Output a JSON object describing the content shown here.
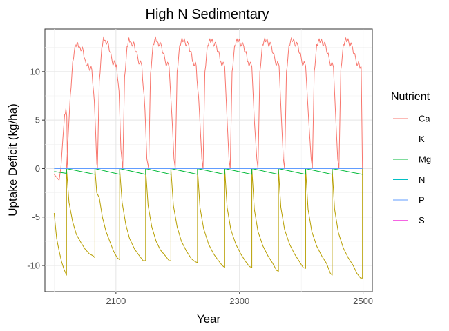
{
  "chart_data": {
    "type": "line",
    "title": "High N Sedimentary",
    "xlabel": "Year",
    "ylabel": "Uptake Deficit (kg/ha)",
    "xlim": [
      1985,
      2515
    ],
    "ylim": [
      -12.7,
      14.4
    ],
    "x_ticks": [
      2100,
      2300,
      2500
    ],
    "y_ticks": [
      -10,
      -5,
      0,
      5,
      10
    ],
    "grid": true,
    "legend": {
      "title": "Nutrient",
      "position": "right"
    },
    "cycle_starts": [
      2020,
      2070,
      2111,
      2153,
      2196,
      2241,
      2285,
      2330,
      2373,
      2418,
      2461
    ],
    "series": [
      {
        "name": "Ca",
        "color": "#F8766D",
        "points": [
          [
            2000,
            -0.6
          ],
          [
            2008,
            -1.2
          ],
          [
            2011,
            0.2
          ],
          [
            2014,
            3.0
          ],
          [
            2017,
            5.6
          ],
          [
            2019,
            6.2
          ],
          [
            2020.5,
            5.4
          ],
          [
            2021.5,
            0.5
          ],
          [
            2022,
            0.0
          ],
          [
            2020,
            0.0
          ],
          [
            2026,
            7.5
          ],
          [
            2030,
            11.0
          ],
          [
            2034,
            12.8
          ],
          [
            2038,
            13.0
          ],
          [
            2042,
            12.5
          ],
          [
            2047,
            12.2
          ],
          [
            2051,
            11.0
          ],
          [
            2056,
            10.5
          ],
          [
            2061,
            10.2
          ],
          [
            2065,
            7.0
          ],
          [
            2067,
            4.0
          ],
          [
            2069,
            0.5
          ],
          [
            2070,
            0.0
          ],
          [
            2070,
            0.0
          ],
          [
            2073,
            9.0
          ],
          [
            2077,
            12.5
          ],
          [
            2080,
            13.6
          ],
          [
            2083,
            13.2
          ],
          [
            2088,
            12.8
          ],
          [
            2094,
            11.0
          ],
          [
            2101,
            10.7
          ],
          [
            2105,
            8.0
          ],
          [
            2108,
            2.0
          ],
          [
            2111,
            0.0
          ],
          [
            2111,
            0.0
          ],
          [
            2114,
            9.5
          ],
          [
            2118,
            12.6
          ],
          [
            2121,
            13.5
          ],
          [
            2125,
            13.0
          ],
          [
            2130,
            12.7
          ],
          [
            2136,
            11.2
          ],
          [
            2142,
            10.6
          ],
          [
            2147,
            6.0
          ],
          [
            2150,
            1.0
          ],
          [
            2153,
            0.0
          ],
          [
            2153,
            0.0
          ],
          [
            2156,
            9.8
          ],
          [
            2160,
            12.8
          ],
          [
            2164,
            13.6
          ],
          [
            2168,
            13.0
          ],
          [
            2174,
            12.6
          ],
          [
            2180,
            11.0
          ],
          [
            2186,
            10.5
          ],
          [
            2191,
            5.0
          ],
          [
            2194,
            1.0
          ],
          [
            2196,
            0.0
          ],
          [
            2196,
            0.0
          ],
          [
            2199,
            10.0
          ],
          [
            2203,
            12.7
          ],
          [
            2207,
            13.5
          ],
          [
            2212,
            13.0
          ],
          [
            2218,
            12.7
          ],
          [
            2225,
            11.0
          ],
          [
            2230,
            10.6
          ],
          [
            2235,
            6.0
          ],
          [
            2239,
            1.0
          ],
          [
            2241,
            0.0
          ],
          [
            2241,
            0.0
          ],
          [
            2244,
            10.0
          ],
          [
            2248,
            12.7
          ],
          [
            2252,
            13.4
          ],
          [
            2257,
            13.0
          ],
          [
            2263,
            12.6
          ],
          [
            2270,
            11.0
          ],
          [
            2276,
            10.5
          ],
          [
            2280,
            5.0
          ],
          [
            2283,
            1.0
          ],
          [
            2285,
            0.0
          ],
          [
            2285,
            0.0
          ],
          [
            2288,
            10.0
          ],
          [
            2292,
            12.7
          ],
          [
            2296,
            13.4
          ],
          [
            2301,
            13.0
          ],
          [
            2307,
            12.6
          ],
          [
            2314,
            11.0
          ],
          [
            2320,
            10.5
          ],
          [
            2324,
            5.0
          ],
          [
            2328,
            1.0
          ],
          [
            2330,
            0.0
          ],
          [
            2330,
            0.0
          ],
          [
            2333,
            10.0
          ],
          [
            2337,
            12.8
          ],
          [
            2341,
            13.5
          ],
          [
            2346,
            13.0
          ],
          [
            2352,
            12.6
          ],
          [
            2358,
            11.0
          ],
          [
            2364,
            10.6
          ],
          [
            2368,
            5.0
          ],
          [
            2371,
            1.0
          ],
          [
            2373,
            0.0
          ],
          [
            2373,
            0.0
          ],
          [
            2376,
            10.0
          ],
          [
            2380,
            12.7
          ],
          [
            2384,
            13.5
          ],
          [
            2389,
            13.0
          ],
          [
            2395,
            12.6
          ],
          [
            2401,
            11.0
          ],
          [
            2407,
            10.6
          ],
          [
            2412,
            5.0
          ],
          [
            2416,
            1.0
          ],
          [
            2418,
            0.0
          ],
          [
            2418,
            0.0
          ],
          [
            2421,
            10.0
          ],
          [
            2425,
            12.8
          ],
          [
            2429,
            13.4
          ],
          [
            2434,
            13.0
          ],
          [
            2440,
            12.6
          ],
          [
            2446,
            11.0
          ],
          [
            2452,
            10.5
          ],
          [
            2456,
            5.0
          ],
          [
            2459,
            1.0
          ],
          [
            2461,
            0.0
          ],
          [
            2461,
            0.0
          ],
          [
            2464,
            10.2
          ],
          [
            2468,
            12.8
          ],
          [
            2472,
            13.5
          ],
          [
            2477,
            13.0
          ],
          [
            2483,
            12.5
          ],
          [
            2489,
            11.0
          ],
          [
            2494,
            10.7
          ],
          [
            2497,
            10.5
          ],
          [
            2499,
            0.0
          ]
        ]
      },
      {
        "name": "K",
        "color": "#B79F00",
        "points": [
          [
            2000,
            -4.6
          ],
          [
            2004,
            -7.2
          ],
          [
            2008,
            -8.5
          ],
          [
            2012,
            -9.6
          ],
          [
            2016,
            -10.4
          ],
          [
            2020,
            -11.0
          ],
          [
            2020,
            0.0
          ],
          [
            2024,
            -3.5
          ],
          [
            2030,
            -5.5
          ],
          [
            2036,
            -6.8
          ],
          [
            2043,
            -7.6
          ],
          [
            2050,
            -8.3
          ],
          [
            2057,
            -8.8
          ],
          [
            2063,
            -9.0
          ],
          [
            2066,
            -9.2
          ],
          [
            2066,
            0.0
          ],
          [
            2069,
            -2.5
          ],
          [
            2073,
            -3.0
          ],
          [
            2078,
            -5.0
          ],
          [
            2084,
            -6.5
          ],
          [
            2090,
            -7.5
          ],
          [
            2096,
            -8.5
          ],
          [
            2102,
            -9.2
          ],
          [
            2106,
            -9.4
          ],
          [
            2106,
            0.0
          ],
          [
            2110,
            -3.5
          ],
          [
            2116,
            -5.8
          ],
          [
            2122,
            -7.2
          ],
          [
            2130,
            -8.3
          ],
          [
            2138,
            -9.0
          ],
          [
            2144,
            -9.5
          ],
          [
            2148,
            -9.5
          ],
          [
            2148,
            0.0
          ],
          [
            2152,
            -3.8
          ],
          [
            2158,
            -6.0
          ],
          [
            2165,
            -7.5
          ],
          [
            2172,
            -8.4
          ],
          [
            2180,
            -9.0
          ],
          [
            2186,
            -9.5
          ],
          [
            2189,
            -9.5
          ],
          [
            2189,
            0.0
          ],
          [
            2193,
            -3.8
          ],
          [
            2199,
            -6.0
          ],
          [
            2206,
            -7.5
          ],
          [
            2214,
            -8.5
          ],
          [
            2222,
            -9.3
          ],
          [
            2228,
            -9.6
          ],
          [
            2232,
            -9.7
          ],
          [
            2232,
            0.0
          ],
          [
            2236,
            -4.0
          ],
          [
            2242,
            -6.2
          ],
          [
            2250,
            -7.8
          ],
          [
            2258,
            -8.8
          ],
          [
            2266,
            -9.5
          ],
          [
            2272,
            -10.0
          ],
          [
            2276,
            -10.2
          ],
          [
            2276,
            0.0
          ],
          [
            2280,
            -4.0
          ],
          [
            2286,
            -6.3
          ],
          [
            2294,
            -7.8
          ],
          [
            2302,
            -8.8
          ],
          [
            2310,
            -9.6
          ],
          [
            2316,
            -10.1
          ],
          [
            2320,
            -10.2
          ],
          [
            2320,
            0.0
          ],
          [
            2324,
            -4.2
          ],
          [
            2330,
            -6.5
          ],
          [
            2338,
            -8.0
          ],
          [
            2346,
            -9.0
          ],
          [
            2354,
            -9.8
          ],
          [
            2360,
            -10.5
          ],
          [
            2363,
            -10.6
          ],
          [
            2363,
            0.0
          ],
          [
            2367,
            -4.0
          ],
          [
            2373,
            -6.3
          ],
          [
            2381,
            -7.8
          ],
          [
            2389,
            -8.8
          ],
          [
            2397,
            -9.6
          ],
          [
            2403,
            -10.2
          ],
          [
            2407,
            -10.3
          ],
          [
            2407,
            0.0
          ],
          [
            2411,
            -4.2
          ],
          [
            2417,
            -6.5
          ],
          [
            2425,
            -8.0
          ],
          [
            2433,
            -9.0
          ],
          [
            2441,
            -9.8
          ],
          [
            2447,
            -10.8
          ],
          [
            2450,
            -11.0
          ],
          [
            2450,
            0.0
          ],
          [
            2454,
            -4.2
          ],
          [
            2460,
            -6.6
          ],
          [
            2468,
            -8.2
          ],
          [
            2476,
            -9.2
          ],
          [
            2484,
            -10.0
          ],
          [
            2490,
            -10.8
          ],
          [
            2496,
            -11.3
          ],
          [
            2499,
            -11.3
          ],
          [
            2499,
            0.0
          ]
        ]
      },
      {
        "name": "Mg",
        "color": "#00BA38",
        "points": [
          [
            2000,
            -0.3
          ],
          [
            2010,
            -0.4
          ],
          [
            2020,
            -0.5
          ],
          [
            2020,
            0.0
          ],
          [
            2066,
            -0.6
          ],
          [
            2066,
            0.0
          ],
          [
            2106,
            -0.6
          ],
          [
            2106,
            0.0
          ],
          [
            2148,
            -0.6
          ],
          [
            2148,
            0.0
          ],
          [
            2189,
            -0.6
          ],
          [
            2189,
            0.0
          ],
          [
            2232,
            -0.6
          ],
          [
            2232,
            0.0
          ],
          [
            2276,
            -0.6
          ],
          [
            2276,
            0.0
          ],
          [
            2320,
            -0.6
          ],
          [
            2320,
            0.0
          ],
          [
            2363,
            -0.6
          ],
          [
            2363,
            0.0
          ],
          [
            2407,
            -0.6
          ],
          [
            2407,
            0.0
          ],
          [
            2450,
            -0.6
          ],
          [
            2450,
            0.0
          ],
          [
            2499,
            -0.6
          ]
        ]
      },
      {
        "name": "N",
        "color": "#00BFC4",
        "points": [
          [
            2000,
            0.0
          ],
          [
            2499,
            0.0
          ]
        ]
      },
      {
        "name": "P",
        "color": "#619CFF",
        "points": [
          [
            2000,
            0.0
          ],
          [
            2499,
            0.0
          ]
        ]
      },
      {
        "name": "S",
        "color": "#F564E3",
        "points": []
      }
    ]
  }
}
